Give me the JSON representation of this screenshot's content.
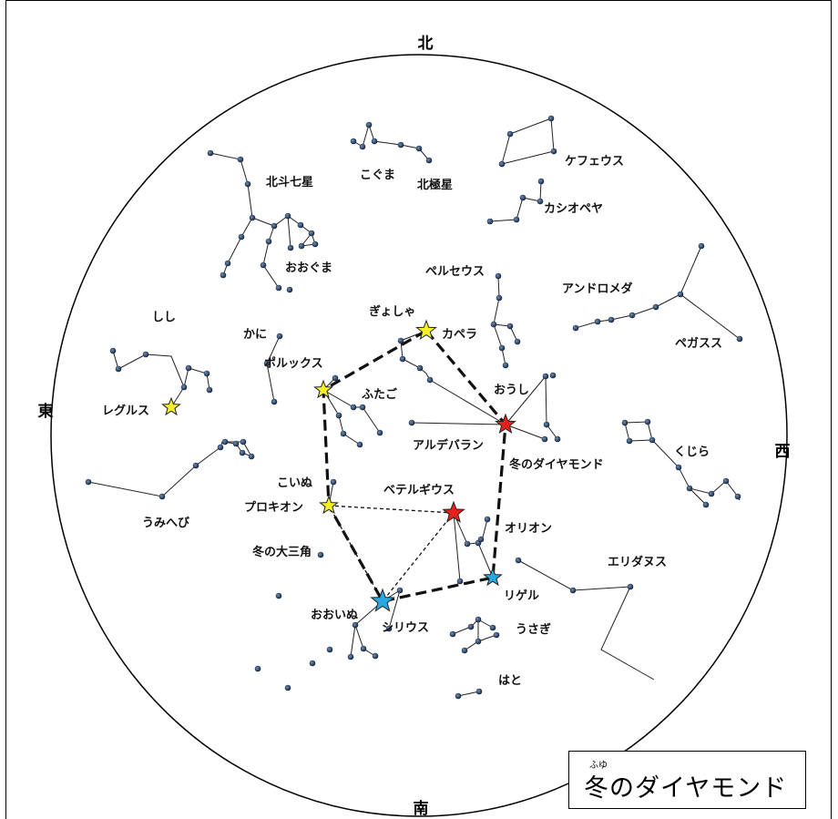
{
  "directions": {
    "north": "北",
    "south": "南",
    "east": "東",
    "west": "西"
  },
  "title": {
    "ruby": "ふゆ",
    "text": "冬のダイヤモンド"
  },
  "constellations": [
    "北斗七星",
    "こぐま",
    "北極星",
    "ケフェウス",
    "カシオペヤ",
    "おおぐま",
    "ペルセウス",
    "アンドロメダ",
    "ぎょしゃ",
    "カペラ",
    "しし",
    "かに",
    "ポルックス",
    "ペガスス",
    "ふたご",
    "おうし",
    "レグルス",
    "アルデバラン",
    "くじら",
    "冬のダイヤモンド",
    "こいぬ",
    "ベテルギウス",
    "プロキオン",
    "うみへび",
    "オリオン",
    "冬の大三角",
    "エリダヌス",
    "リゲル",
    "おおいぬ",
    "シリウス",
    "うさぎ",
    "はと"
  ],
  "colors": {
    "star_yellow": "#f5f02a",
    "star_red": "#e8201c",
    "star_blue": "#2aa7df",
    "dot": "#1d2f4a"
  }
}
